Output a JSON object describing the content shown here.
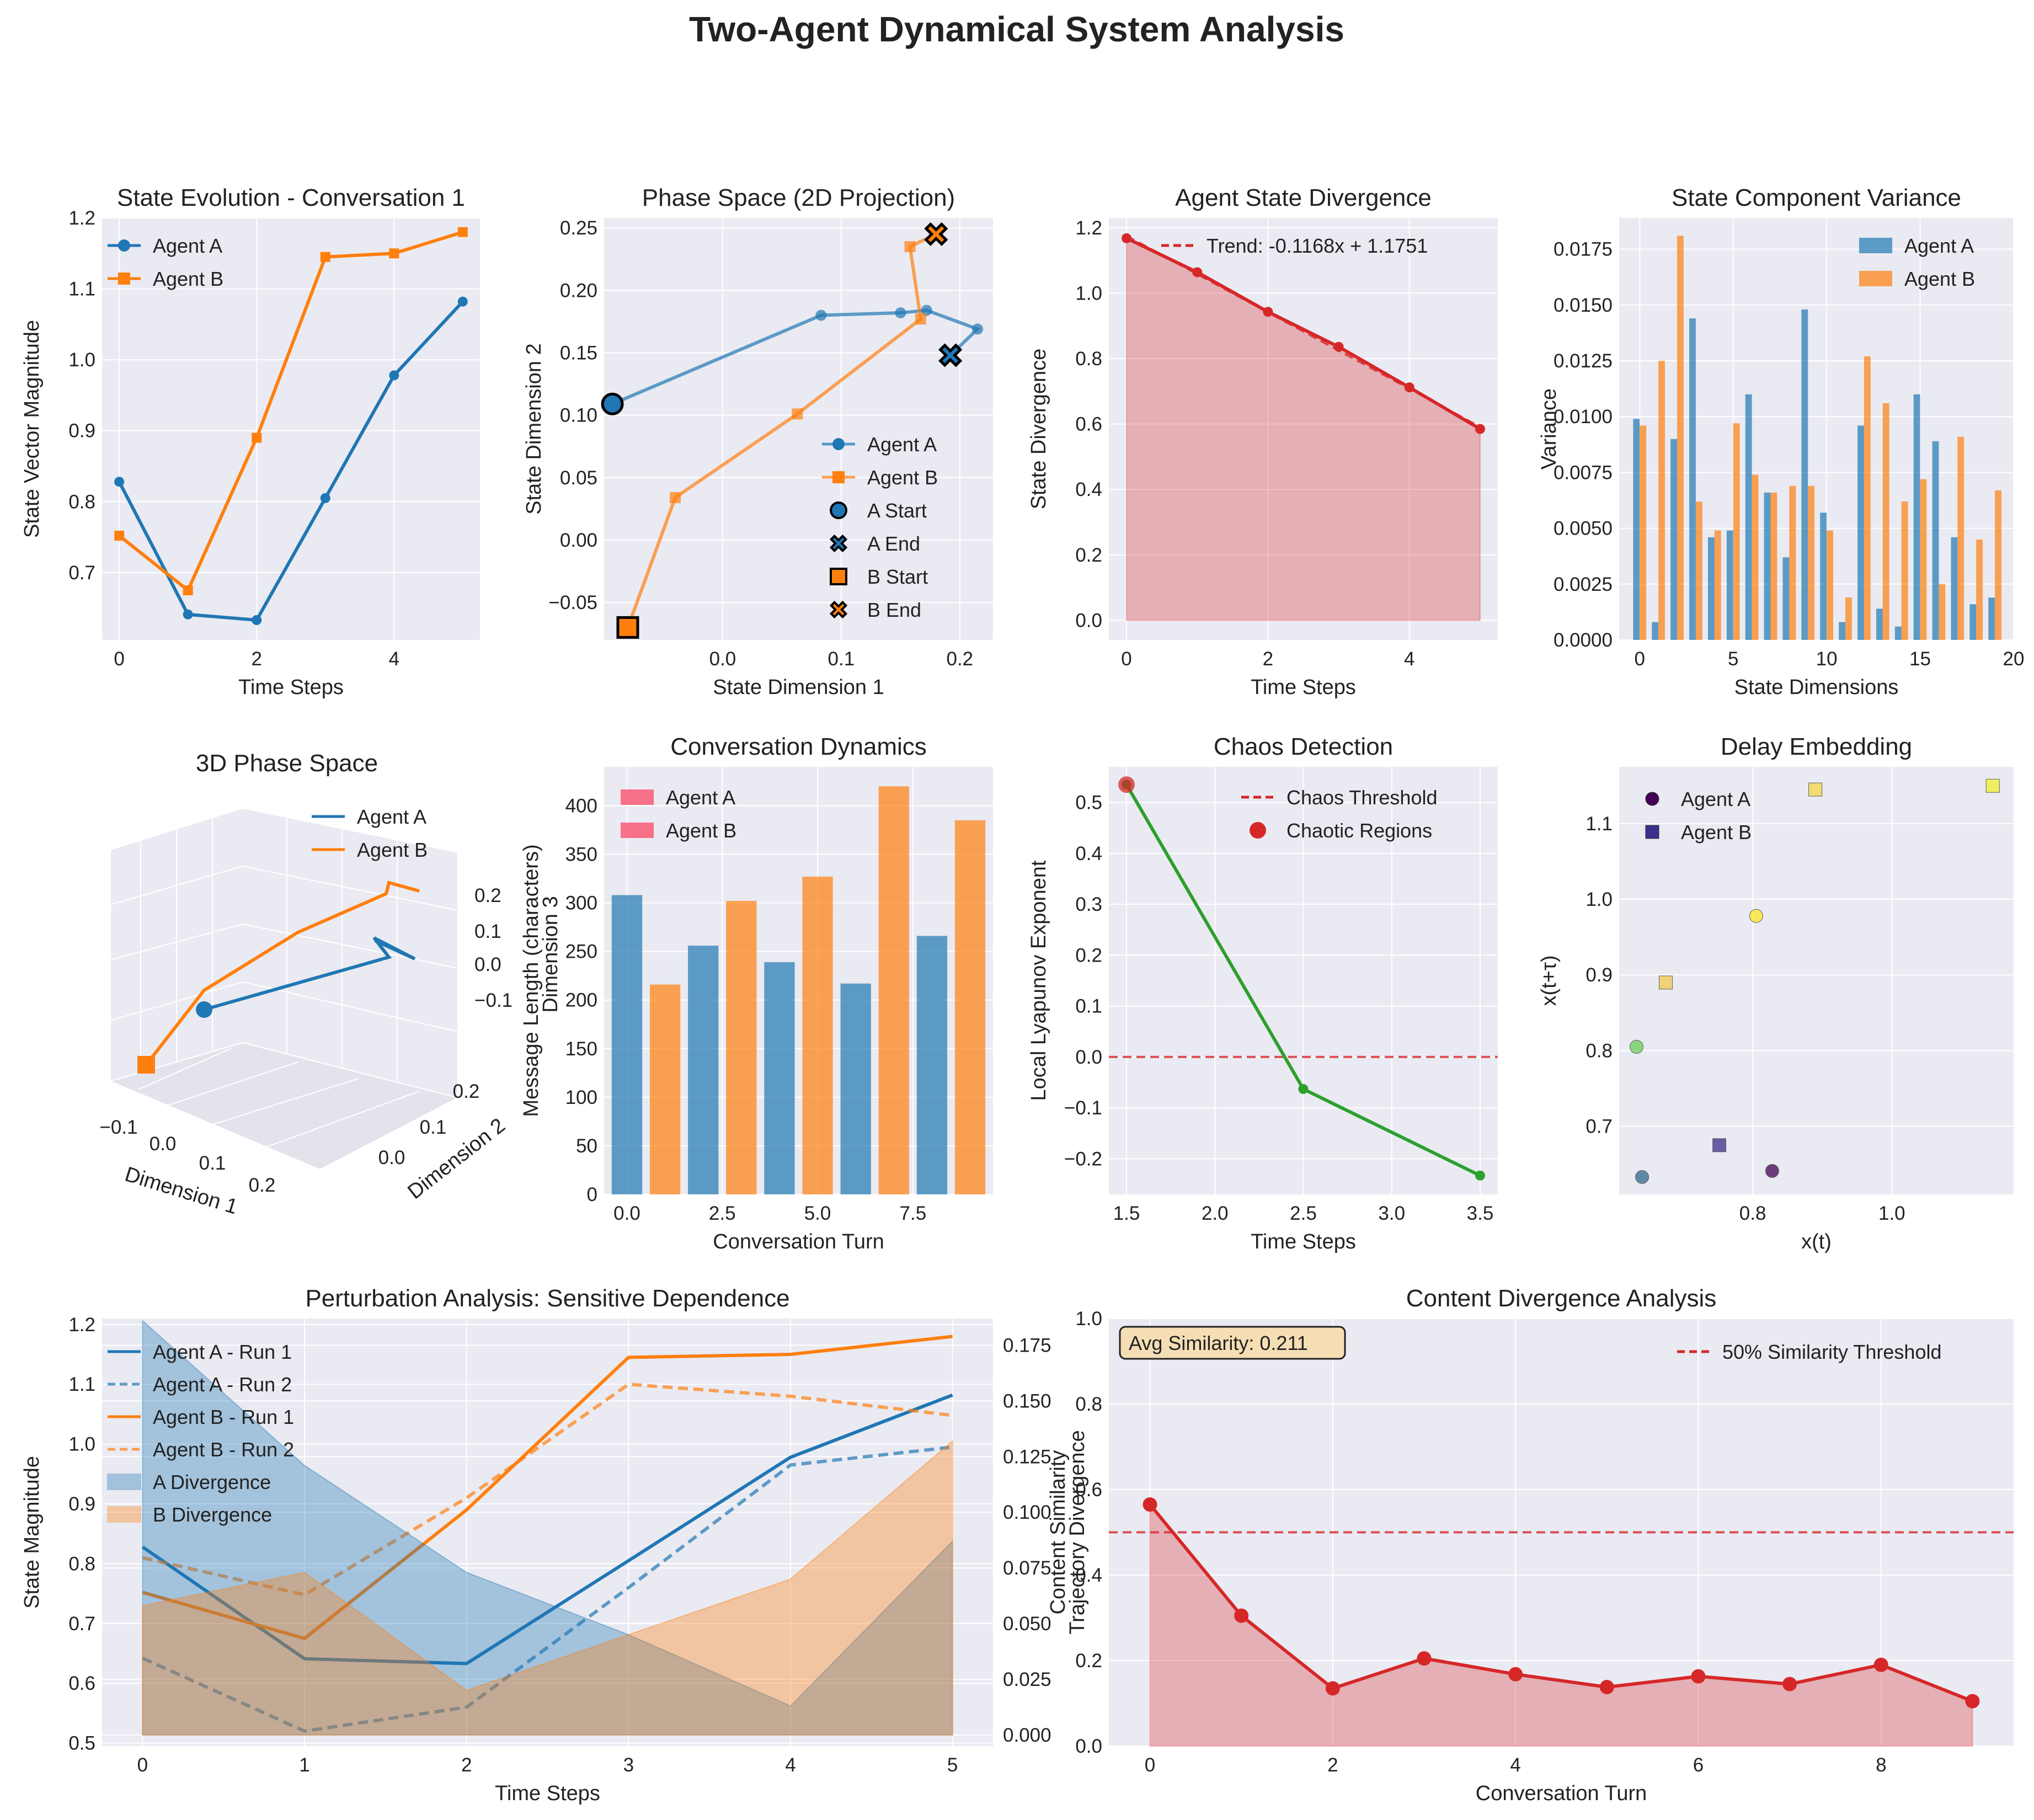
{
  "suptitle": "Two-Agent Dynamical System Analysis",
  "colors": {
    "agentA": "#1f77b4",
    "agentB": "#ff7f0e",
    "red": "#d62728",
    "green": "#2ca02c",
    "bar_pink": "#f77189",
    "bg": "#eaeaf2"
  },
  "chart_data": [
    {
      "id": "state_evolution",
      "type": "line",
      "title": "State Evolution - Conversation 1",
      "xlabel": "Time Steps",
      "ylabel": "State Vector Magnitude",
      "xlim": [
        -0.25,
        5.25
      ],
      "ylim": [
        0.605,
        1.2
      ],
      "xticks": [
        0,
        2,
        4
      ],
      "yticks": [
        0.7,
        0.8,
        0.9,
        1.0,
        1.1,
        1.2
      ],
      "ytick_labels": [
        "0.7",
        "0.8",
        "0.9",
        "1.0",
        "1.1",
        "1.2"
      ],
      "legend": "upper-left",
      "series": [
        {
          "name": "Agent A",
          "color": "#1f77b4",
          "marker": "circle",
          "x": [
            0,
            1,
            2,
            3,
            4,
            5
          ],
          "y": [
            0.828,
            0.641,
            0.633,
            0.805,
            0.978,
            1.082
          ]
        },
        {
          "name": "Agent B",
          "color": "#ff7f0e",
          "marker": "square",
          "x": [
            0,
            1,
            2,
            3,
            4,
            5
          ],
          "y": [
            0.752,
            0.675,
            0.89,
            1.145,
            1.15,
            1.18
          ]
        }
      ]
    },
    {
      "id": "phase_space_2d",
      "type": "line",
      "title": "Phase Space (2D Projection)",
      "xlabel": "State Dimension 1",
      "ylabel": "State Dimension 2",
      "xlim": [
        -0.1,
        0.228
      ],
      "ylim": [
        -0.08,
        0.258
      ],
      "xticks": [
        0.0,
        0.1,
        0.2
      ],
      "yticks": [
        -0.05,
        0.0,
        0.05,
        0.1,
        0.15,
        0.2,
        0.25
      ],
      "ytick_labels": [
        "−0.05",
        "0.00",
        "0.05",
        "0.10",
        "0.15",
        "0.20",
        "0.25"
      ],
      "xtick_labels": [
        "0.0",
        "0.1",
        "0.2"
      ],
      "legend": "lower-right",
      "series": [
        {
          "name": "Agent A",
          "color": "#1f77b4",
          "marker": "circle",
          "alpha": 0.7,
          "x": [
            -0.093,
            0.083,
            0.15,
            0.172,
            0.215,
            0.192
          ],
          "y": [
            0.109,
            0.18,
            0.182,
            0.184,
            0.169,
            0.148
          ]
        },
        {
          "name": "Agent B",
          "color": "#ff7f0e",
          "marker": "square",
          "alpha": 0.7,
          "x": [
            -0.08,
            -0.04,
            0.063,
            0.167,
            0.158,
            0.18
          ],
          "y": [
            -0.07,
            0.034,
            0.101,
            0.177,
            0.235,
            0.245
          ]
        }
      ],
      "markers": [
        {
          "name": "A Start",
          "color": "#1f77b4",
          "shape": "circle",
          "x": -0.093,
          "y": 0.109
        },
        {
          "name": "A End",
          "color": "#1f77b4",
          "shape": "x",
          "x": 0.192,
          "y": 0.148
        },
        {
          "name": "B Start",
          "color": "#ff7f0e",
          "shape": "square",
          "x": -0.08,
          "y": -0.07
        },
        {
          "name": "B End",
          "color": "#ff7f0e",
          "shape": "x",
          "x": 0.18,
          "y": 0.245
        }
      ]
    },
    {
      "id": "divergence",
      "type": "area",
      "title": "Agent State Divergence",
      "xlabel": "Time Steps",
      "ylabel": "State Divergence",
      "xlim": [
        -0.25,
        5.25
      ],
      "ylim": [
        -0.06,
        1.23
      ],
      "xticks": [
        0,
        2,
        4
      ],
      "yticks": [
        0.0,
        0.2,
        0.4,
        0.6,
        0.8,
        1.0,
        1.2
      ],
      "ytick_labels": [
        "0.0",
        "0.2",
        "0.4",
        "0.6",
        "0.8",
        "1.0",
        "1.2"
      ],
      "x": [
        0,
        1,
        2,
        3,
        4,
        5
      ],
      "y": [
        1.168,
        1.064,
        0.943,
        0.836,
        0.712,
        0.585
      ],
      "trend": {
        "label": "Trend: -0.1168x + 1.1751",
        "slope": -0.1168,
        "intercept": 1.1751
      },
      "legend": "upper-right"
    },
    {
      "id": "variance",
      "type": "bar",
      "title": "State Component Variance",
      "xlabel": "State Dimensions",
      "ylabel": "Variance",
      "xlim": [
        -1.1,
        20.0
      ],
      "ylim": [
        0,
        0.0189
      ],
      "xticks": [
        0,
        5,
        10,
        15,
        20
      ],
      "yticks": [
        0.0,
        0.0025,
        0.005,
        0.0075,
        0.01,
        0.0125,
        0.015,
        0.0175
      ],
      "ytick_labels": [
        "0.0000",
        "0.0025",
        "0.0050",
        "0.0075",
        "0.0100",
        "0.0125",
        "0.0150",
        "0.0175"
      ],
      "legend": "upper-right",
      "series": [
        {
          "name": "Agent A",
          "color": "#1f77b4",
          "values": [
            0.0099,
            0.0008,
            0.009,
            0.0144,
            0.0046,
            0.0049,
            0.011,
            0.0066,
            0.0037,
            0.0148,
            0.0057,
            0.0008,
            0.0096,
            0.0014,
            0.0006,
            0.011,
            0.0089,
            0.0046,
            0.0016,
            0.0019
          ]
        },
        {
          "name": "Agent B",
          "color": "#ff7f0e",
          "values": [
            0.0096,
            0.0125,
            0.0181,
            0.0062,
            0.0049,
            0.0097,
            0.0074,
            0.0066,
            0.0069,
            0.0069,
            0.0049,
            0.0019,
            0.0127,
            0.0106,
            0.0062,
            0.0072,
            0.0025,
            0.0091,
            0.0045,
            0.0067
          ]
        }
      ]
    },
    {
      "id": "phase_space_3d",
      "type": "line3d",
      "title": "3D Phase Space",
      "xlabel": "Dimension 1",
      "ylabel": "Dimension 2",
      "zlabel": "Dimension 3",
      "xtick_labels": [
        "−0.1",
        "0.0",
        "0.1",
        "0.2"
      ],
      "ytick_labels": [
        "0.0",
        "0.1",
        "0.2"
      ],
      "ztick_labels": [
        "−0.1",
        "0.0",
        "0.1",
        "0.2"
      ],
      "legend": "upper-right",
      "series": [
        {
          "name": "Agent A",
          "color": "#1f77b4"
        },
        {
          "name": "Agent B",
          "color": "#ff7f0e"
        }
      ]
    },
    {
      "id": "conversation_dynamics",
      "type": "bar",
      "title": "Conversation Dynamics",
      "xlabel": "Conversation Turn",
      "ylabel": "Message Length (characters)",
      "xlim": [
        -0.6,
        9.6
      ],
      "ylim": [
        0,
        440
      ],
      "xticks": [
        0,
        2.5,
        5,
        7.5
      ],
      "xtick_labels": [
        "0.0",
        "2.5",
        "5.0",
        "7.5"
      ],
      "yticks": [
        0,
        50,
        100,
        150,
        200,
        250,
        300,
        350,
        400
      ],
      "legend": "upper-left",
      "legend_entries": [
        "Agent A",
        "Agent B"
      ],
      "x": [
        0,
        1,
        2,
        3,
        4,
        5,
        6,
        7,
        8,
        9
      ],
      "values": [
        308,
        216,
        256,
        302,
        239,
        327,
        217,
        420,
        266,
        385
      ],
      "bar_colors": [
        "#1f77b4",
        "#ff7f0e",
        "#1f77b4",
        "#ff7f0e",
        "#1f77b4",
        "#ff7f0e",
        "#1f77b4",
        "#ff7f0e",
        "#1f77b4",
        "#ff7f0e"
      ]
    },
    {
      "id": "chaos",
      "type": "line",
      "title": "Chaos Detection",
      "xlabel": "Time Steps",
      "ylabel": "Local Lyapunov Exponent",
      "xlim": [
        1.4,
        3.6
      ],
      "ylim": [
        -0.27,
        0.57
      ],
      "xticks": [
        1.5,
        2.0,
        2.5,
        3.0,
        3.5
      ],
      "xtick_labels": [
        "1.5",
        "2.0",
        "2.5",
        "3.0",
        "3.5"
      ],
      "yticks": [
        -0.2,
        -0.1,
        0.0,
        0.1,
        0.2,
        0.3,
        0.4,
        0.5
      ],
      "ytick_labels": [
        "−0.2",
        "−0.1",
        "0.0",
        "0.1",
        "0.2",
        "0.3",
        "0.4",
        "0.5"
      ],
      "x": [
        1.5,
        2.5,
        3.5
      ],
      "y": [
        0.535,
        -0.063,
        -0.233
      ],
      "threshold": {
        "label": "Chaos Threshold",
        "y": 0.0
      },
      "chaotic": {
        "label": "Chaotic Regions",
        "x": [
          1.5
        ],
        "y": [
          0.535
        ]
      },
      "legend": "upper-right"
    },
    {
      "id": "delay_embedding",
      "type": "scatter",
      "title": "Delay Embedding",
      "xlabel": "x(t)",
      "ylabel": "x(t+τ)",
      "xlim": [
        0.608,
        1.175
      ],
      "ylim": [
        0.61,
        1.175
      ],
      "xticks": [
        0.8,
        1.0
      ],
      "xtick_labels": [
        "0.8",
        "1.0"
      ],
      "yticks": [
        0.7,
        0.8,
        0.9,
        1.0,
        1.1
      ],
      "ytick_labels": [
        "0.7",
        "0.8",
        "0.9",
        "1.0",
        "1.1"
      ],
      "legend": "upper-left",
      "series": [
        {
          "name": "Agent A",
          "marker": "circle",
          "x": [
            0.828,
            0.641,
            0.633,
            0.805
          ],
          "y": [
            0.641,
            0.633,
            0.805,
            0.978
          ],
          "colors": [
            "#440154",
            "#31688e",
            "#6ccd5a",
            "#fde725"
          ]
        },
        {
          "name": "Agent B",
          "marker": "square",
          "x": [
            0.752,
            0.675,
            0.89,
            1.145
          ],
          "y": [
            0.675,
            0.89,
            1.145,
            1.15
          ],
          "colors": [
            "#3b2f8b",
            "#f2c94c",
            "#f7d84a",
            "#f0f22e"
          ]
        }
      ]
    },
    {
      "id": "perturbation",
      "type": "line",
      "title": "Perturbation Analysis: Sensitive Dependence",
      "xlabel": "Time Steps",
      "ylabel": "State Magnitude",
      "y2label": "Trajectory Divergence",
      "xlim": [
        -0.25,
        5.25
      ],
      "ylim": [
        0.495,
        1.21
      ],
      "y2lim": [
        -0.005,
        0.187
      ],
      "xticks": [
        0,
        1,
        2,
        3,
        4,
        5
      ],
      "yticks": [
        0.5,
        0.6,
        0.7,
        0.8,
        0.9,
        1.0,
        1.1,
        1.2
      ],
      "ytick_labels": [
        "0.5",
        "0.6",
        "0.7",
        "0.8",
        "0.9",
        "1.0",
        "1.1",
        "1.2"
      ],
      "y2ticks": [
        0.0,
        0.025,
        0.05,
        0.075,
        0.1,
        0.125,
        0.15,
        0.175
      ],
      "y2tick_labels": [
        "0.000",
        "0.025",
        "0.050",
        "0.075",
        "0.100",
        "0.125",
        "0.150",
        "0.175"
      ],
      "legend": "upper-left",
      "series": [
        {
          "name": "Agent A - Run 1",
          "color": "#1f77b4",
          "dash": false,
          "x": [
            0,
            1,
            2,
            3,
            4,
            5
          ],
          "y": [
            0.828,
            0.641,
            0.633,
            0.805,
            0.978,
            1.082
          ]
        },
        {
          "name": "Agent A - Run 2",
          "color": "#1f77b4",
          "dash": true,
          "x": [
            0,
            1,
            2,
            3,
            4,
            5
          ],
          "y": [
            0.642,
            0.52,
            0.56,
            0.76,
            0.965,
            0.995
          ]
        },
        {
          "name": "Agent B - Run 1",
          "color": "#ff7f0e",
          "dash": false,
          "x": [
            0,
            1,
            2,
            3,
            4,
            5
          ],
          "y": [
            0.752,
            0.675,
            0.89,
            1.145,
            1.15,
            1.18
          ]
        },
        {
          "name": "Agent B - Run 2",
          "color": "#ff7f0e",
          "dash": true,
          "x": [
            0,
            1,
            2,
            3,
            4,
            5
          ],
          "y": [
            0.81,
            0.748,
            0.91,
            1.1,
            1.08,
            1.048
          ]
        }
      ],
      "areas": [
        {
          "name": "A Divergence",
          "color": "#1f77b4",
          "x": [
            0,
            1,
            2,
            3,
            4,
            5
          ],
          "y": [
            0.186,
            0.121,
            0.073,
            0.045,
            0.013,
            0.087
          ]
        },
        {
          "name": "B Divergence",
          "color": "#ff7f0e",
          "x": [
            0,
            1,
            2,
            3,
            4,
            5
          ],
          "y": [
            0.058,
            0.073,
            0.02,
            0.045,
            0.07,
            0.132
          ]
        }
      ]
    },
    {
      "id": "content_divergence",
      "type": "area",
      "title": "Content Divergence Analysis",
      "xlabel": "Conversation Turn",
      "ylabel": "Content Similarity",
      "xlim": [
        -0.45,
        9.45
      ],
      "ylim": [
        0,
        1.0
      ],
      "xticks": [
        0,
        2,
        4,
        6,
        8
      ],
      "yticks": [
        0.0,
        0.2,
        0.4,
        0.6,
        0.8,
        1.0
      ],
      "ytick_labels": [
        "0.0",
        "0.2",
        "0.4",
        "0.6",
        "0.8",
        "1.0"
      ],
      "x": [
        0,
        1,
        2,
        3,
        4,
        5,
        6,
        7,
        8,
        9
      ],
      "y": [
        0.565,
        0.305,
        0.135,
        0.205,
        0.168,
        0.138,
        0.163,
        0.145,
        0.19,
        0.105
      ],
      "threshold": {
        "label": "50% Similarity Threshold",
        "y": 0.5
      },
      "annotation": "Avg Similarity: 0.211",
      "legend": "upper-right"
    }
  ]
}
